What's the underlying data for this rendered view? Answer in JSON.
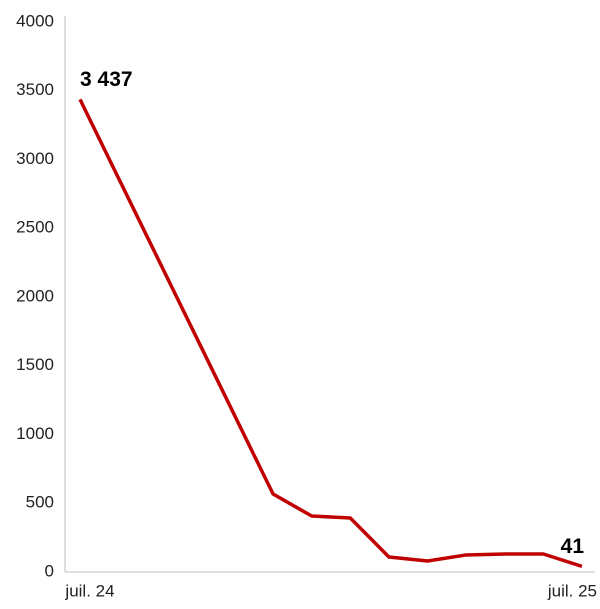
{
  "chart_data": {
    "type": "line",
    "categories": [
      "juil. 24",
      null,
      null,
      null,
      null,
      null,
      null,
      null,
      null,
      null,
      null,
      null,
      null,
      "juil. 25"
    ],
    "series": [
      {
        "color": "#c00000",
        "values": [
          3437,
          2863,
          2289,
          1715,
          1141,
          567,
          407,
          393,
          109,
          80,
          124,
          131,
          131,
          41
        ],
        "value_labels": [
          "3 437",
          null,
          null,
          null,
          null,
          null,
          null,
          null,
          null,
          null,
          null,
          null,
          null,
          "41"
        ]
      }
    ],
    "ylim": [
      0,
      4000
    ],
    "yticks": [
      0,
      500,
      1000,
      1500,
      2000,
      2500,
      3000,
      3500,
      4000
    ],
    "grid": false
  }
}
